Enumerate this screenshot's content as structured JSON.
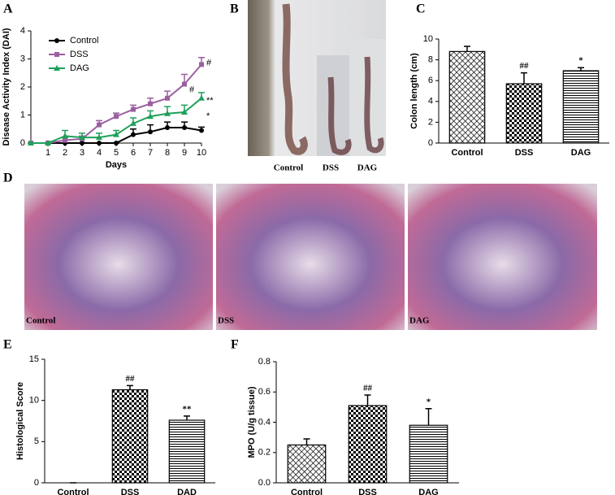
{
  "panel_letters": [
    "A",
    "B",
    "C",
    "D",
    "E",
    "F"
  ],
  "photo_labels": [
    "Control",
    "DSS",
    "DAG"
  ],
  "histology_labels": [
    "Control",
    "DSS",
    "DAG"
  ],
  "chart_data": [
    {
      "type": "line",
      "xlabel": "Days",
      "ylabel": "Disease Activity Index (DAI)",
      "x": [
        0,
        1,
        2,
        3,
        4,
        5,
        6,
        7,
        8,
        9,
        10
      ],
      "xlim": [
        0,
        10
      ],
      "xticks": [
        1,
        2,
        3,
        4,
        5,
        6,
        7,
        8,
        9,
        10
      ],
      "ylim": [
        0,
        4
      ],
      "yticks": [
        0,
        1,
        2,
        3,
        4
      ],
      "legend": "upper left",
      "series": [
        {
          "name": "Control",
          "color": "#000000",
          "marker": "circle",
          "values": [
            0,
            0,
            0,
            0,
            0,
            0,
            0.3,
            0.4,
            0.55,
            0.55,
            0.45
          ],
          "errors": [
            0,
            0,
            0,
            0,
            0,
            0,
            0.2,
            0.25,
            0.2,
            0.2,
            0.12
          ]
        },
        {
          "name": "DSS",
          "color": "#9b5fa0",
          "marker": "square",
          "values": [
            0,
            0,
            0.1,
            0.15,
            0.65,
            0.95,
            1.2,
            1.4,
            1.6,
            2.1,
            2.8
          ],
          "errors": [
            0,
            0,
            0.1,
            0.1,
            0.15,
            0.12,
            0.15,
            0.2,
            0.25,
            0.35,
            0.25
          ]
        },
        {
          "name": "DAG",
          "color": "#1fa05a",
          "marker": "triangle",
          "values": [
            0,
            0,
            0.25,
            0.2,
            0.2,
            0.3,
            0.7,
            0.95,
            1.05,
            1.1,
            1.6
          ],
          "errors": [
            0,
            0,
            0.2,
            0.15,
            0.15,
            0.15,
            0.2,
            0.2,
            0.25,
            0.25,
            0.2
          ]
        }
      ],
      "annotations": [
        {
          "text": "#",
          "x": 9,
          "y": 1.9
        },
        {
          "text": "#",
          "x": 10,
          "y": 2.85
        },
        {
          "text": "**",
          "x": 10,
          "y": 1.5
        },
        {
          "text": "*",
          "x": 10,
          "y": 0.95
        }
      ]
    },
    {
      "type": "bar",
      "ylabel": "Colon length (cm)",
      "categories": [
        "Control",
        "DSS",
        "DAG"
      ],
      "values": [
        8.8,
        5.7,
        6.95
      ],
      "errors": [
        0.5,
        1.05,
        0.3
      ],
      "annotations": [
        null,
        "##",
        "*"
      ],
      "ylim": [
        0,
        10
      ],
      "yticks": [
        0,
        2,
        4,
        6,
        8,
        10
      ],
      "color": "#000000",
      "patterns": [
        "crosshatch",
        "checker",
        "horizontal"
      ]
    },
    {
      "type": "bar",
      "ylabel": "Histological Score",
      "categories": [
        "Control",
        "DSS",
        "DAD"
      ],
      "values": [
        0,
        11.3,
        7.6
      ],
      "errors": [
        0,
        0.5,
        0.5
      ],
      "annotations": [
        null,
        "##",
        "**"
      ],
      "ylim": [
        0,
        15
      ],
      "yticks": [
        0,
        5,
        10,
        15
      ],
      "color": "#000000",
      "patterns": [
        "crosshatch",
        "checker",
        "horizontal"
      ]
    },
    {
      "type": "bar",
      "ylabel": "MPO (U/g tissue)",
      "categories": [
        "Control",
        "DSS",
        "DAG"
      ],
      "values": [
        0.25,
        0.51,
        0.38
      ],
      "errors": [
        0.04,
        0.07,
        0.11
      ],
      "annotations": [
        null,
        "##",
        "*"
      ],
      "ylim": [
        0,
        0.8
      ],
      "yticks": [
        {
          "value": 0,
          "label": "0.0"
        },
        0.2,
        0.4,
        0.6,
        0.8
      ],
      "color": "#000000",
      "patterns": [
        "crosshatch",
        "checker",
        "horizontal"
      ]
    }
  ]
}
